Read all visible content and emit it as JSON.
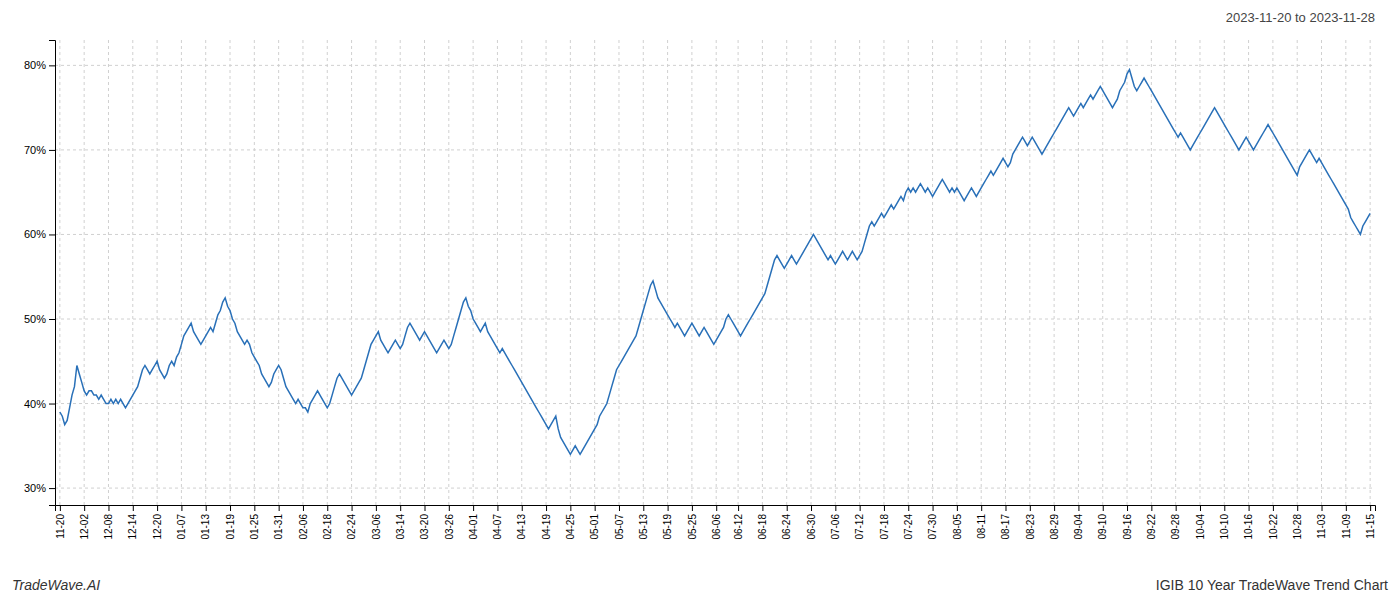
{
  "chart_data": {
    "type": "line",
    "title": "2023-11-20 to 2023-11-28",
    "annotations": [
      "TradeWave.AI",
      "IGIB 10 Year TradeWave Trend Chart"
    ],
    "color": "#2970b8",
    "ylim": [
      28,
      83
    ],
    "yticks": [
      {
        "value": 30,
        "label": "30%"
      },
      {
        "value": 40,
        "label": "40%"
      },
      {
        "value": 50,
        "label": "50%"
      },
      {
        "value": 60,
        "label": "60%"
      },
      {
        "value": 70,
        "label": "70%"
      },
      {
        "value": 80,
        "label": "80%"
      }
    ],
    "grid": true,
    "categories": [
      "11-20",
      null,
      null,
      null,
      null,
      null,
      null,
      null,
      null,
      null,
      "12-02",
      null,
      null,
      null,
      null,
      null,
      null,
      null,
      null,
      null,
      "12-08",
      null,
      null,
      null,
      null,
      null,
      null,
      null,
      null,
      null,
      "12-14",
      null,
      null,
      null,
      null,
      null,
      null,
      null,
      null,
      null,
      "12-20",
      null,
      null,
      null,
      null,
      null,
      null,
      null,
      null,
      null,
      "01-07",
      null,
      null,
      null,
      null,
      null,
      null,
      null,
      null,
      null,
      "01-13",
      null,
      null,
      null,
      null,
      null,
      null,
      null,
      null,
      null,
      "01-19",
      null,
      null,
      null,
      null,
      null,
      null,
      null,
      null,
      null,
      "01-25",
      null,
      null,
      null,
      null,
      null,
      null,
      null,
      null,
      null,
      "01-31",
      null,
      null,
      null,
      null,
      null,
      null,
      null,
      null,
      null,
      "02-06",
      null,
      null,
      null,
      null,
      null,
      null,
      null,
      null,
      null,
      "02-18",
      null,
      null,
      null,
      null,
      null,
      null,
      null,
      null,
      null,
      "02-24",
      null,
      null,
      null,
      null,
      null,
      null,
      null,
      null,
      null,
      "03-06",
      null,
      null,
      null,
      null,
      null,
      null,
      null,
      null,
      null,
      "03-14",
      null,
      null,
      null,
      null,
      null,
      null,
      null,
      null,
      null,
      "03-20",
      null,
      null,
      null,
      null,
      null,
      null,
      null,
      null,
      null,
      "03-26",
      null,
      null,
      null,
      null,
      null,
      null,
      null,
      null,
      null,
      "04-01",
      null,
      null,
      null,
      null,
      null,
      null,
      null,
      null,
      null,
      "04-07",
      null,
      null,
      null,
      null,
      null,
      null,
      null,
      null,
      null,
      "04-13",
      null,
      null,
      null,
      null,
      null,
      null,
      null,
      null,
      null,
      "04-19",
      null,
      null,
      null,
      null,
      null,
      null,
      null,
      null,
      null,
      "04-25",
      null,
      null,
      null,
      null,
      null,
      null,
      null,
      null,
      null,
      "05-01",
      null,
      null,
      null,
      null,
      null,
      null,
      null,
      null,
      null,
      "05-07",
      null,
      null,
      null,
      null,
      null,
      null,
      null,
      null,
      null,
      "05-13",
      null,
      null,
      null,
      null,
      null,
      null,
      null,
      null,
      null,
      "05-19",
      null,
      null,
      null,
      null,
      null,
      null,
      null,
      null,
      null,
      "05-25",
      null,
      null,
      null,
      null,
      null,
      null,
      null,
      null,
      null,
      "06-06",
      null,
      null,
      null,
      null,
      null,
      null,
      null,
      null,
      "06-12",
      null,
      null,
      null,
      null,
      null,
      null,
      null,
      null,
      null,
      "06-18",
      null,
      null,
      null,
      null,
      null,
      null,
      null,
      null,
      null,
      "06-24",
      null,
      null,
      null,
      null,
      null,
      null,
      null,
      null,
      null,
      "06-30",
      null,
      null,
      null,
      null,
      null,
      null,
      null,
      null,
      null,
      "07-06",
      null,
      null,
      null,
      null,
      null,
      null,
      null,
      null,
      null,
      "07-12",
      null,
      null,
      null,
      null,
      null,
      null,
      null,
      null,
      null,
      "07-18",
      null,
      null,
      null,
      null,
      null,
      null,
      null,
      null,
      null,
      "07-24",
      null,
      null,
      null,
      null,
      null,
      null,
      null,
      null,
      null,
      "07-30",
      null,
      null,
      null,
      null,
      null,
      null,
      null,
      null,
      null,
      "08-05",
      null,
      null,
      null,
      null,
      null,
      null,
      null,
      null,
      null,
      "08-11",
      null,
      null,
      null,
      null,
      null,
      null,
      null,
      null,
      null,
      "08-17",
      null,
      null,
      null,
      null,
      null,
      null,
      null,
      null,
      null,
      "08-23",
      null,
      null,
      null,
      null,
      null,
      null,
      null,
      null,
      null,
      "08-29",
      null,
      null,
      null,
      null,
      null,
      null,
      null,
      null,
      null,
      "09-04",
      null,
      null,
      null,
      null,
      null,
      null,
      null,
      null,
      null,
      "09-10",
      null,
      null,
      null,
      null,
      null,
      null,
      null,
      null,
      null,
      "09-16",
      null,
      null,
      null,
      null,
      null,
      null,
      null,
      null,
      null,
      "09-22",
      null,
      null,
      null,
      null,
      null,
      null,
      null,
      null,
      null,
      "09-28",
      null,
      null,
      null,
      null,
      null,
      null,
      null,
      null,
      null,
      "10-04",
      null,
      null,
      null,
      null,
      null,
      null,
      null,
      null,
      null,
      "10-10",
      null,
      null,
      null,
      null,
      null,
      null,
      null,
      null,
      null,
      "10-16",
      null,
      null,
      null,
      null,
      null,
      null,
      null,
      null,
      null,
      "10-22",
      null,
      null,
      null,
      null,
      null,
      null,
      null,
      null,
      null,
      "10-28",
      null,
      null,
      null,
      null,
      null,
      null,
      null,
      null,
      null,
      "11-03",
      null,
      null,
      null,
      null,
      null,
      null,
      null,
      null,
      null,
      "11-09",
      null,
      null,
      null,
      null,
      null,
      null,
      null,
      null,
      null,
      "11-15"
    ],
    "values": [
      39.0,
      38.5,
      37.5,
      38.0,
      39.5,
      41.0,
      42.0,
      44.5,
      43.5,
      42.5,
      41.5,
      41.0,
      41.5,
      41.5,
      41.0,
      41.0,
      40.5,
      41.0,
      40.5,
      40.0,
      40.0,
      40.5,
      40.0,
      40.5,
      40.0,
      40.5,
      40.0,
      39.5,
      40.0,
      40.5,
      41.0,
      41.5,
      42.0,
      43.0,
      44.0,
      44.5,
      44.0,
      43.5,
      44.0,
      44.5,
      45.0,
      44.0,
      43.5,
      43.0,
      43.5,
      44.5,
      45.0,
      44.5,
      45.5,
      46.0,
      47.0,
      48.0,
      48.5,
      49.0,
      49.5,
      48.5,
      48.0,
      47.5,
      47.0,
      47.5,
      48.0,
      48.5,
      49.0,
      48.5,
      49.5,
      50.5,
      51.0,
      52.0,
      52.5,
      51.5,
      51.0,
      50.0,
      49.5,
      48.5,
      48.0,
      47.5,
      47.0,
      47.5,
      47.0,
      46.0,
      45.5,
      45.0,
      44.5,
      43.5,
      43.0,
      42.5,
      42.0,
      42.5,
      43.5,
      44.0,
      44.5,
      44.0,
      43.0,
      42.0,
      41.5,
      41.0,
      40.5,
      40.0,
      40.5,
      40.0,
      39.5,
      39.5,
      39.0,
      40.0,
      40.5,
      41.0,
      41.5,
      41.0,
      40.5,
      40.0,
      39.5,
      40.0,
      41.0,
      42.0,
      43.0,
      43.5,
      43.0,
      42.5,
      42.0,
      41.5,
      41.0,
      41.5,
      42.0,
      42.5,
      43.0,
      44.0,
      45.0,
      46.0,
      47.0,
      47.5,
      48.0,
      48.5,
      47.5,
      47.0,
      46.5,
      46.0,
      46.5,
      47.0,
      47.5,
      47.0,
      46.5,
      47.0,
      48.0,
      49.0,
      49.5,
      49.0,
      48.5,
      48.0,
      47.5,
      48.0,
      48.5,
      48.0,
      47.5,
      47.0,
      46.5,
      46.0,
      46.5,
      47.0,
      47.5,
      47.0,
      46.5,
      47.0,
      48.0,
      49.0,
      50.0,
      51.0,
      52.0,
      52.5,
      51.5,
      51.0,
      50.0,
      49.5,
      49.0,
      48.5,
      49.0,
      49.5,
      48.5,
      48.0,
      47.5,
      47.0,
      46.5,
      46.0,
      46.5,
      46.0,
      45.5,
      45.0,
      44.5,
      44.0,
      43.5,
      43.0,
      42.5,
      42.0,
      41.5,
      41.0,
      40.5,
      40.0,
      39.5,
      39.0,
      38.5,
      38.0,
      37.5,
      37.0,
      37.5,
      38.0,
      38.5,
      37.0,
      36.0,
      35.5,
      35.0,
      34.5,
      34.0,
      34.5,
      35.0,
      34.5,
      34.0,
      34.5,
      35.0,
      35.5,
      36.0,
      36.5,
      37.0,
      37.5,
      38.5,
      39.0,
      39.5,
      40.0,
      41.0,
      42.0,
      43.0,
      44.0,
      44.5,
      45.0,
      45.5,
      46.0,
      46.5,
      47.0,
      47.5,
      48.0,
      49.0,
      50.0,
      51.0,
      52.0,
      53.0,
      54.0,
      54.5,
      53.5,
      52.5,
      52.0,
      51.5,
      51.0,
      50.5,
      50.0,
      49.5,
      49.0,
      49.5,
      49.0,
      48.5,
      48.0,
      48.5,
      49.0,
      49.5,
      49.0,
      48.5,
      48.0,
      48.5,
      49.0,
      48.5,
      48.0,
      47.5,
      47.0,
      47.5,
      48.0,
      48.5,
      49.0,
      50.0,
      50.5,
      50.0,
      49.5,
      49.0,
      48.5,
      48.0,
      48.5,
      49.0,
      49.5,
      50.0,
      50.5,
      51.0,
      51.5,
      52.0,
      52.5,
      53.0,
      54.0,
      55.0,
      56.0,
      57.0,
      57.5,
      57.0,
      56.5,
      56.0,
      56.5,
      57.0,
      57.5,
      57.0,
      56.5,
      57.0,
      57.5,
      58.0,
      58.5,
      59.0,
      59.5,
      60.0,
      59.5,
      59.0,
      58.5,
      58.0,
      57.5,
      57.0,
      57.5,
      57.0,
      56.5,
      57.0,
      57.5,
      58.0,
      57.5,
      57.0,
      57.5,
      58.0,
      57.5,
      57.0,
      57.5,
      58.0,
      59.0,
      60.0,
      61.0,
      61.5,
      61.0,
      61.5,
      62.0,
      62.5,
      62.0,
      62.5,
      63.0,
      63.5,
      63.0,
      63.5,
      64.0,
      64.5,
      64.0,
      65.0,
      65.5,
      65.0,
      65.5,
      65.0,
      65.5,
      66.0,
      65.5,
      65.0,
      65.5,
      65.0,
      64.5,
      65.0,
      65.5,
      66.0,
      66.5,
      66.0,
      65.5,
      65.0,
      65.5,
      65.0,
      65.5,
      65.0,
      64.5,
      64.0,
      64.5,
      65.0,
      65.5,
      65.0,
      64.5,
      65.0,
      65.5,
      66.0,
      66.5,
      67.0,
      67.5,
      67.0,
      67.5,
      68.0,
      68.5,
      69.0,
      68.5,
      68.0,
      68.5,
      69.5,
      70.0,
      70.5,
      71.0,
      71.5,
      71.0,
      70.5,
      71.0,
      71.5,
      71.0,
      70.5,
      70.0,
      69.5,
      70.0,
      70.5,
      71.0,
      71.5,
      72.0,
      72.5,
      73.0,
      73.5,
      74.0,
      74.5,
      75.0,
      74.5,
      74.0,
      74.5,
      75.0,
      75.5,
      75.0,
      75.5,
      76.0,
      76.5,
      76.0,
      76.5,
      77.0,
      77.5,
      77.0,
      76.5,
      76.0,
      75.5,
      75.0,
      75.5,
      76.0,
      77.0,
      77.5,
      78.0,
      79.0,
      79.5,
      78.5,
      77.5,
      77.0,
      77.5,
      78.0,
      78.5,
      78.0,
      77.5,
      77.0,
      76.5,
      76.0,
      75.5,
      75.0,
      74.5,
      74.0,
      73.5,
      73.0,
      72.5,
      72.0,
      71.5,
      72.0,
      71.5,
      71.0,
      70.5,
      70.0,
      70.5,
      71.0,
      71.5,
      72.0,
      72.5,
      73.0,
      73.5,
      74.0,
      74.5,
      75.0,
      74.5,
      74.0,
      73.5,
      73.0,
      72.5,
      72.0,
      71.5,
      71.0,
      70.5,
      70.0,
      70.5,
      71.0,
      71.5,
      71.0,
      70.5,
      70.0,
      70.5,
      71.0,
      71.5,
      72.0,
      72.5,
      73.0,
      72.5,
      72.0,
      71.5,
      71.0,
      70.5,
      70.0,
      69.5,
      69.0,
      68.5,
      68.0,
      67.5,
      67.0,
      68.0,
      68.5,
      69.0,
      69.5,
      70.0,
      69.5,
      69.0,
      68.5,
      69.0,
      68.5,
      68.0,
      67.5,
      67.0,
      66.5,
      66.0,
      65.5,
      65.0,
      64.5,
      64.0,
      63.5,
      63.0,
      62.0,
      61.5,
      61.0,
      60.5,
      60.0,
      61.0,
      61.5,
      62.0,
      62.5
    ]
  }
}
